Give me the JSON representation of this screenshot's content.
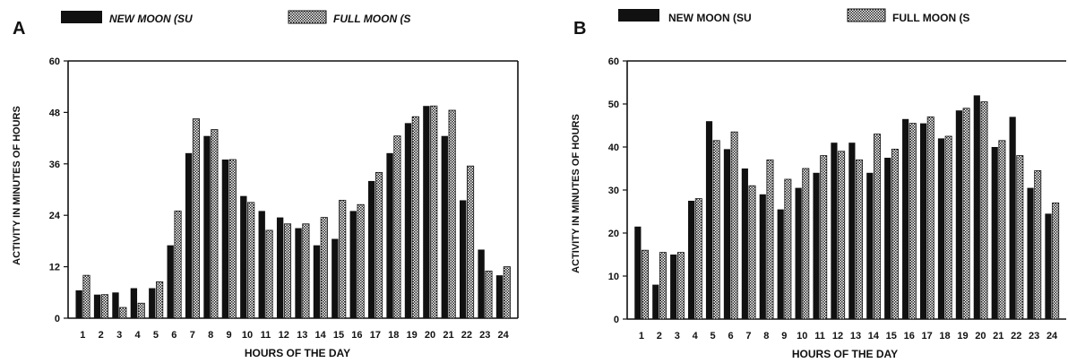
{
  "colors": {
    "new_moon": "#111111",
    "full_moon_pattern": "checkered",
    "axis": "#111111"
  },
  "chart_data": [
    {
      "panel_label": "A",
      "type": "bar",
      "legend": [
        "NEW MOON (SU",
        "FULL MOON (S"
      ],
      "legend_placement": "top",
      "xlabel": "HOURS OF THE DAY",
      "ylabel": "ACTIVITY IN MINUTES OF HOURS",
      "ylim": [
        0,
        60
      ],
      "yticks": [
        0,
        12,
        24,
        36,
        48,
        60
      ],
      "categories": [
        "1",
        "2",
        "3",
        "4",
        "5",
        "6",
        "7",
        "8",
        "9",
        "10",
        "11",
        "12",
        "13",
        "14",
        "15",
        "16",
        "17",
        "18",
        "19",
        "20",
        "21",
        "22",
        "23",
        "24"
      ],
      "series": [
        {
          "name": "NEW MOON (SU",
          "values": [
            6.5,
            5.5,
            6,
            7,
            7,
            17,
            38.5,
            42.5,
            37,
            28.5,
            25,
            23.5,
            21,
            17,
            18.5,
            25,
            32,
            38.5,
            45.5,
            49.5,
            42.5,
            27.5,
            16,
            10
          ]
        },
        {
          "name": "FULL MOON (S",
          "values": [
            10,
            5.5,
            2.5,
            3.5,
            8.5,
            25,
            46.5,
            44,
            37,
            27,
            20.5,
            22,
            22,
            23.5,
            27.5,
            26.5,
            34,
            42.5,
            47,
            49.5,
            48.5,
            35.5,
            11,
            12
          ]
        }
      ],
      "grid": false
    },
    {
      "panel_label": "B",
      "type": "bar",
      "legend": [
        "NEW MOON (SU",
        "FULL MOON (S"
      ],
      "legend_placement": "top",
      "xlabel": "HOURS OF THE DAY",
      "ylabel": "ACTIVITY IN MINUTES OF HOURS",
      "ylim": [
        0,
        60
      ],
      "yticks": [
        0,
        10,
        20,
        30,
        40,
        50,
        60
      ],
      "categories": [
        "1",
        "2",
        "3",
        "4",
        "5",
        "6",
        "7",
        "8",
        "9",
        "10",
        "11",
        "12",
        "13",
        "14",
        "15",
        "16",
        "17",
        "18",
        "19",
        "20",
        "21",
        "22",
        "23",
        "24"
      ],
      "series": [
        {
          "name": "NEW MOON (SU",
          "values": [
            21.5,
            8,
            15,
            27.5,
            46,
            39.5,
            35,
            29,
            25.5,
            30.5,
            34,
            41,
            41,
            34,
            37.5,
            46.5,
            45.5,
            42,
            48.5,
            52,
            40,
            47,
            30.5,
            24.5
          ]
        },
        {
          "name": "FULL MOON (S",
          "values": [
            16,
            15.5,
            15.5,
            28,
            41.5,
            43.5,
            31,
            37,
            32.5,
            35,
            38,
            39,
            37,
            43,
            39.5,
            45.5,
            47,
            42.5,
            49,
            50.5,
            41.5,
            38,
            34.5,
            27
          ]
        }
      ],
      "grid": false
    }
  ]
}
